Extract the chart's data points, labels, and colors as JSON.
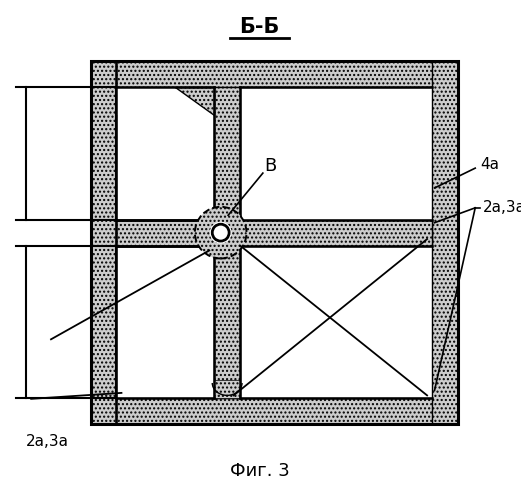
{
  "title": "Б-Б",
  "fig_label": "Фиг. 3",
  "label_B": "В",
  "label_4a": "4а",
  "label_2a3a_right": "2а,3а",
  "label_2a3a_left": "2а,3а",
  "bg_color": "#ffffff",
  "line_color": "#000000",
  "figsize": [
    5.21,
    5.0
  ],
  "dpi": 100
}
